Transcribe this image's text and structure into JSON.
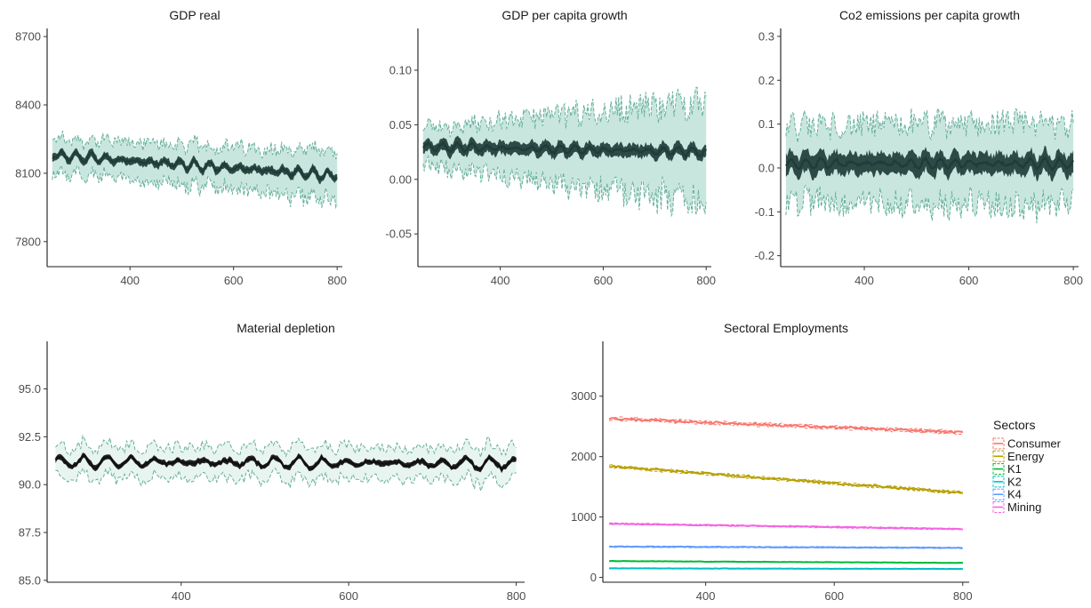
{
  "chart_data": [
    {
      "id": "p1",
      "type": "line",
      "title": "GDP real",
      "xlabel": "",
      "ylabel": "",
      "xlim": [
        240,
        810
      ],
      "ylim": [
        7690,
        8720
      ],
      "x_ticks": [
        400,
        600,
        800
      ],
      "y_ticks": [
        7800,
        8100,
        8400,
        8700
      ],
      "y_tick_labels": [
        "7800",
        "8100",
        "8400",
        "8700"
      ],
      "band": true,
      "series": [
        {
          "x_start": 250,
          "x_end": 800,
          "mean_start": 8180,
          "mean_end": 8090,
          "mean_osc": 22,
          "band_half_start": 85,
          "band_half_end": 120,
          "ci_half": 18
        }
      ]
    },
    {
      "id": "p2",
      "type": "line",
      "title": "GDP per capita growth",
      "xlabel": "",
      "ylabel": "",
      "xlim": [
        240,
        810
      ],
      "ylim": [
        -0.08,
        0.135
      ],
      "x_ticks": [
        400,
        600,
        800
      ],
      "y_ticks": [
        -0.05,
        0.0,
        0.05,
        0.1
      ],
      "y_tick_labels": [
        "-0.05",
        "0.00",
        "0.05",
        "0.10"
      ],
      "band": true,
      "series": [
        {
          "x_start": 250,
          "x_end": 800,
          "mean_start": 0.03,
          "mean_end": 0.025,
          "mean_osc": 0.004,
          "band_half_start": 0.02,
          "band_half_end": 0.055,
          "ci_half": 0.006
        }
      ]
    },
    {
      "id": "p3",
      "type": "line",
      "title": "Co2 emissions per capita growth",
      "xlabel": "",
      "ylabel": "",
      "xlim": [
        240,
        810
      ],
      "ylim": [
        -0.225,
        0.31
      ],
      "x_ticks": [
        400,
        600,
        800
      ],
      "y_ticks": [
        -0.2,
        -0.1,
        0.0,
        0.1,
        0.2,
        0.3
      ],
      "y_tick_labels": [
        "-0.2",
        "-0.1",
        "0.0",
        "0.1",
        "0.2",
        "0.3"
      ],
      "band": true,
      "series": [
        {
          "x_start": 250,
          "x_end": 800,
          "mean_start": 0.01,
          "mean_end": 0.01,
          "mean_osc": 0.012,
          "band_half_start": 0.1,
          "band_half_end": 0.11,
          "ci_half": 0.025
        }
      ]
    },
    {
      "id": "p4",
      "type": "line",
      "title": "Material depletion",
      "xlabel": "",
      "ylabel": "",
      "xlim": [
        240,
        810
      ],
      "ylim": [
        84.9,
        97.3
      ],
      "x_ticks": [
        400,
        600,
        800
      ],
      "y_ticks": [
        85.0,
        87.5,
        90.0,
        92.5,
        95.0
      ],
      "y_tick_labels": [
        "85.0",
        "87.5",
        "90.0",
        "92.5",
        "95.0"
      ],
      "band": true,
      "series": [
        {
          "x_start": 250,
          "x_end": 800,
          "mean_start": 91.2,
          "mean_end": 91.1,
          "mean_osc": 0.3,
          "band_half_start": 0.9,
          "band_half_end": 1.0,
          "ci_half": 0.15
        }
      ]
    },
    {
      "id": "p5",
      "type": "line",
      "title": "Sectoral Employments",
      "xlabel": "",
      "ylabel": "",
      "xlim": [
        240,
        810
      ],
      "ylim": [
        -80,
        3850
      ],
      "x_ticks": [
        400,
        600,
        800
      ],
      "y_ticks": [
        0,
        1000,
        2000,
        3000
      ],
      "y_tick_labels": [
        "0",
        "1000",
        "2000",
        "3000"
      ],
      "legend": {
        "title": "Sectors",
        "position": "right"
      },
      "series": [
        {
          "name": "Consumer",
          "color": "#F8766D",
          "start": 2630,
          "end": 2400,
          "noise": 35
        },
        {
          "name": "Energy",
          "color": "#B79F00",
          "start": 1840,
          "end": 1400,
          "noise": 30
        },
        {
          "name": "K1",
          "color": "#00BA38",
          "start": 270,
          "end": 240,
          "noise": 6
        },
        {
          "name": "K2",
          "color": "#00BFC4",
          "start": 150,
          "end": 140,
          "noise": 5
        },
        {
          "name": "K4",
          "color": "#619CFF",
          "start": 510,
          "end": 490,
          "noise": 12
        },
        {
          "name": "Mining",
          "color": "#F564E3",
          "start": 890,
          "end": 800,
          "noise": 15
        }
      ]
    }
  ],
  "colors": {
    "band_line": "#66b09c",
    "band_fill": "#c9e6de",
    "band_fill_light": "#e8f4f0",
    "mean": "#1f3d38",
    "mean_black": "#111111"
  }
}
